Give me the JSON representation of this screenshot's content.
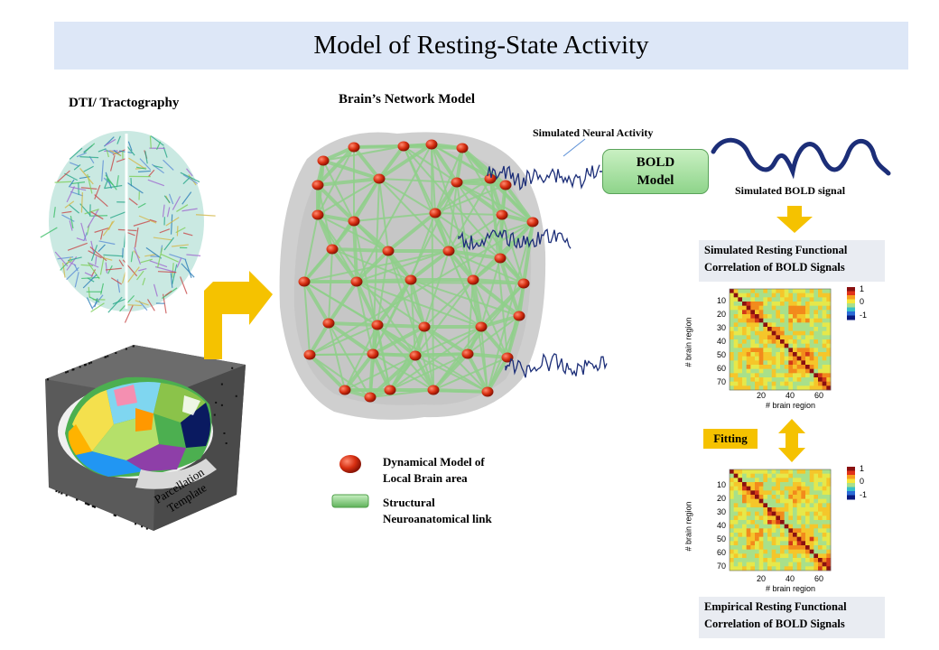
{
  "title": "Model of Resting-State Activity",
  "labels": {
    "dti": "DTI/ Tractography",
    "network_model": "Brain’s Network Model",
    "neural_activity": "Simulated Neural Activity",
    "bold_signal": "Simulated BOLD signal",
    "fitting": "Fitting"
  },
  "bold_model": {
    "line1": "BOLD",
    "line2": "Model"
  },
  "parcellation": {
    "line1": "Parcellation",
    "line2": "Template"
  },
  "legend": {
    "node": {
      "line1": "Dynamical Model of",
      "line2": "Local Brain area"
    },
    "link": {
      "line1": "Structural",
      "line2": "Neuroanatomical link"
    }
  },
  "simulated_fc": {
    "title_line1": "Simulated Resting Functional",
    "title_line2": "Correlation of BOLD Signals",
    "y_ticks": [
      "10",
      "20",
      "30",
      "40",
      "50",
      "60",
      "70"
    ],
    "x_ticks": [
      "20",
      "40",
      "60"
    ],
    "xlabel": "# brain region",
    "ylabel": "# brain region",
    "colorbar": [
      "1",
      "0",
      "-1"
    ]
  },
  "empirical_fc": {
    "title_line1": "Empirical Resting Functional",
    "title_line2": "Correlation of BOLD Signals",
    "y_ticks": [
      "10",
      "20",
      "30",
      "40",
      "50",
      "60",
      "70"
    ],
    "x_ticks": [
      "20",
      "40",
      "60"
    ],
    "xlabel": "# brain region",
    "ylabel": "# brain region",
    "colorbar": [
      "1",
      "0",
      "-1"
    ]
  },
  "colors": {
    "title_bg": "#dde7f7",
    "arrow": "#f5c200",
    "node": "#d62e10",
    "link": "#8fd08a",
    "signal": "#1c2e78"
  }
}
